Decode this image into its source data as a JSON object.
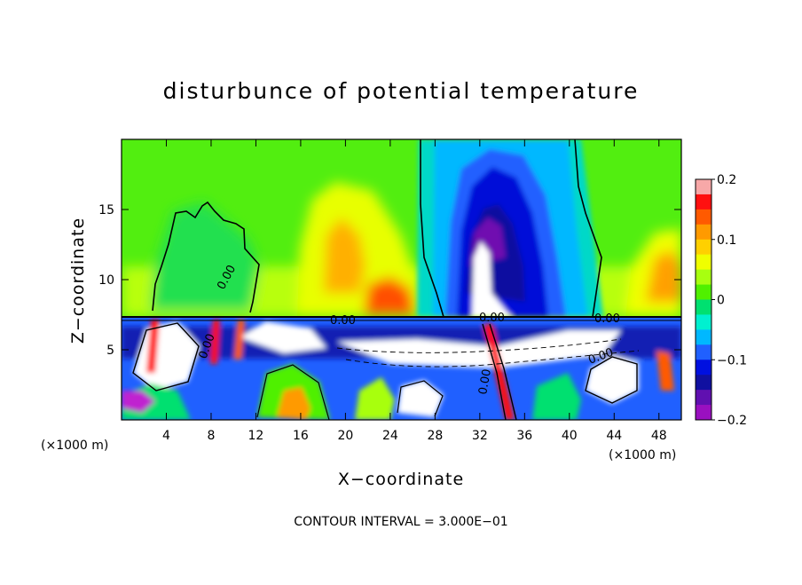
{
  "chart_data": {
    "type": "heatmap",
    "title": "disturbunce of potential temperature",
    "xlabel": "X−coordinate",
    "ylabel": "Z−coordinate",
    "x_unit": "(×1000 m)",
    "y_unit": "(×1000 m)",
    "xlim": [
      0,
      50
    ],
    "ylim": [
      0,
      20
    ],
    "x_ticks": [
      4,
      8,
      12,
      16,
      20,
      24,
      28,
      32,
      36,
      40,
      44,
      48
    ],
    "x_tick_labels": [
      "4",
      "8",
      "12",
      "16",
      "20",
      "24",
      "28",
      "32",
      "36",
      "40",
      "44",
      "48"
    ],
    "y_ticks": [
      5,
      10,
      15
    ],
    "y_tick_labels": [
      "5",
      "10",
      "15"
    ],
    "colorbar": {
      "range": [
        -0.2,
        0.2
      ],
      "ticks": [
        0.2,
        0.1,
        0,
        -0.1,
        -0.2
      ],
      "tick_labels": [
        "0.2",
        "0.1",
        "0",
        "−0.1",
        "−0.2"
      ],
      "colors": [
        "#f7a8a8",
        "#ff1010",
        "#ff5a00",
        "#ff9a00",
        "#ffd000",
        "#f0ff00",
        "#a8ff10",
        "#50f000",
        "#00e070",
        "#00f0d0",
        "#00b8ff",
        "#2060ff",
        "#0010e0",
        "#1010a0",
        "#6010b0",
        "#9a10c0"
      ]
    },
    "contour_label": "0.00",
    "contour_interval_text": "CONTOUR INTERVAL = 3.000E−01",
    "fields": [
      {
        "name": "upper-base",
        "x": [
          0,
          50
        ],
        "z": [
          7.5,
          20
        ],
        "value": 0.01
      },
      {
        "name": "warm-left-tower",
        "x": [
          2.5,
          12
        ],
        "z": [
          7.5,
          15.3
        ],
        "value": -0.01
      },
      {
        "name": "warm-mid-low",
        "x": [
          18,
          27
        ],
        "z": [
          7.5,
          13
        ],
        "value": 0.09
      },
      {
        "name": "warm-mid-core",
        "x": [
          22,
          26
        ],
        "z": [
          7.5,
          9.5
        ],
        "value": 0.14
      },
      {
        "name": "warm-right",
        "x": [
          44,
          50
        ],
        "z": [
          7.5,
          13
        ],
        "value": 0.06
      },
      {
        "name": "cold-plume",
        "x": [
          27,
          41
        ],
        "z": [
          7.5,
          20
        ],
        "value": -0.12
      },
      {
        "name": "cold-plume-core",
        "x": [
          31,
          35
        ],
        "z": [
          8,
          14
        ],
        "value": -0.2
      },
      {
        "name": "lower-layer",
        "x": [
          0,
          50
        ],
        "z": [
          0,
          7.5
        ],
        "value": -0.1
      }
    ],
    "grid": false
  }
}
